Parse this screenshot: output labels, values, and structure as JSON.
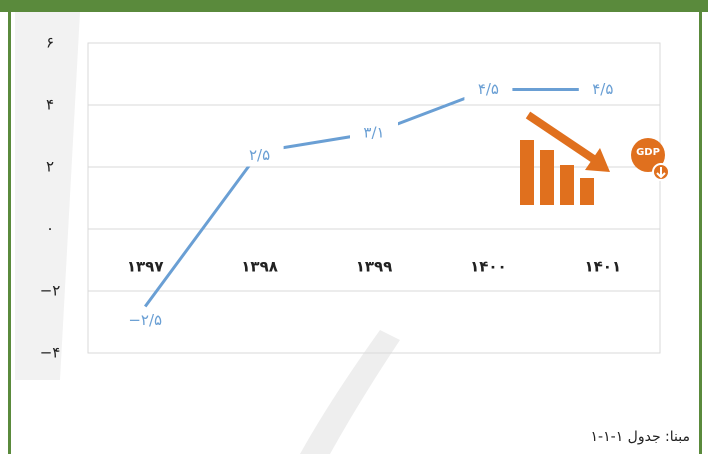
{
  "chart_data": {
    "type": "line",
    "categories": [
      "۱۳۹۷",
      "۱۳۹۸",
      "۱۳۹۹",
      "۱۴۰۰",
      "۱۴۰۱"
    ],
    "values": [
      -2.5,
      2.5,
      3.1,
      4.5,
      4.5
    ],
    "value_labels": [
      "−۲/۵",
      "۲/۵",
      "۳/۱",
      "۴/۵",
      "۴/۵"
    ],
    "color": "#6a9fd4",
    "ylim": [
      -4,
      6
    ],
    "yticks": [
      {
        "value": -4,
        "label": "−۴"
      },
      {
        "value": -2,
        "label": "−۲"
      },
      {
        "value": 0,
        "label": "۰"
      },
      {
        "value": 2,
        "label": "۲"
      },
      {
        "value": 4,
        "label": "۴"
      },
      {
        "value": 6,
        "label": "۶"
      }
    ],
    "grid": true,
    "icon_label": "GDP",
    "source": "مبنا: جدول ۱-۱-۱"
  }
}
